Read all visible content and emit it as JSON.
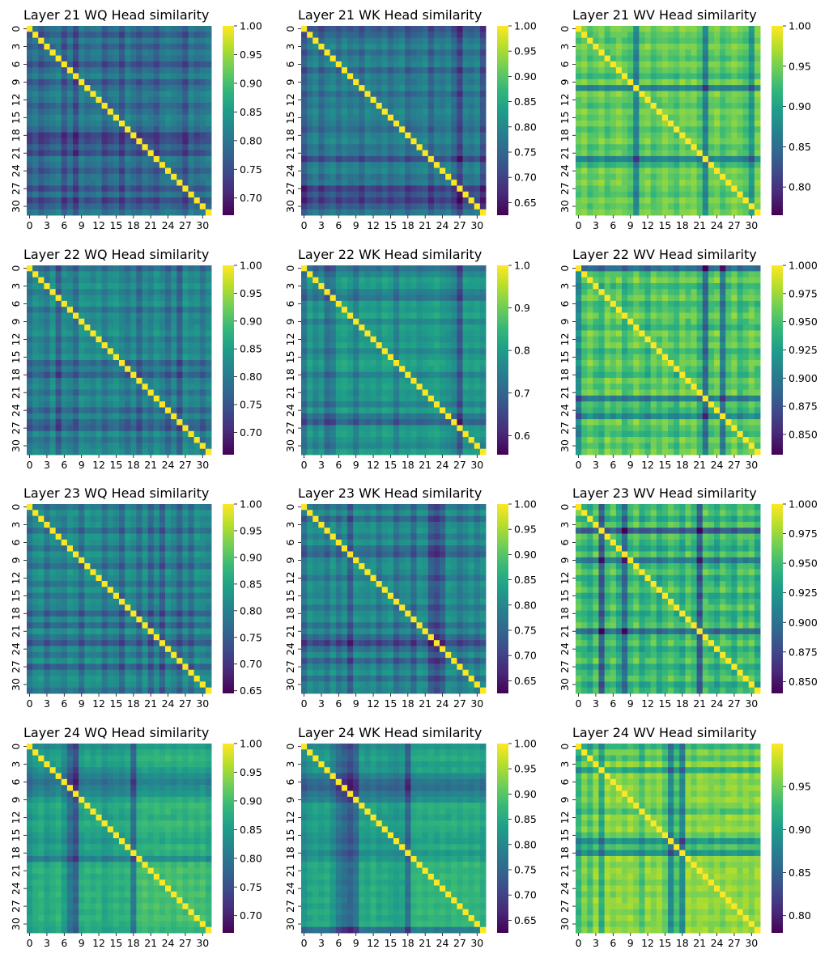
{
  "figure": {
    "n_heads": 32
  },
  "colormap": {
    "name": "viridis",
    "stops": [
      "#440154",
      "#482878",
      "#3e4989",
      "#31688e",
      "#26828e",
      "#1f9e89",
      "#35b779",
      "#6ece58",
      "#b5de2b",
      "#fde725"
    ]
  },
  "chart_data": [
    {
      "type": "heatmap",
      "title": "Layer 21 WQ Head similarity",
      "xticks": [
        "0",
        "3",
        "6",
        "9",
        "12",
        "15",
        "18",
        "21",
        "24",
        "27",
        "30"
      ],
      "yticks": [
        "0",
        "3",
        "6",
        "9",
        "12",
        "15",
        "18",
        "21",
        "24",
        "27",
        "30"
      ],
      "vmin": 0.67,
      "vmax": 1.0,
      "colorbar_ticks": [
        "0.70",
        "0.75",
        "0.80",
        "0.85",
        "0.90",
        "0.95",
        "1.00"
      ],
      "base": 0.79,
      "row_effects": [
        0,
        -0.03,
        0.01,
        -0.02,
        0.01,
        0,
        -0.04,
        0,
        0.02,
        -0.03,
        0,
        0.02,
        0.01,
        -0.02,
        0,
        0.02,
        0.01,
        -0.01,
        -0.06,
        -0.05,
        -0.02,
        -0.05,
        0.01,
        0,
        -0.03,
        0,
        0,
        -0.04,
        0,
        -0.05,
        -0.02,
        0.01
      ],
      "col_effects": [
        -0.01,
        0.01,
        -0.02,
        0,
        0.01,
        0.02,
        -0.03,
        0.01,
        -0.04,
        0.02,
        0,
        0.01,
        0.02,
        -0.02,
        0,
        0.01,
        -0.03,
        0.02,
        0,
        -0.02,
        0.01,
        0,
        -0.02,
        0.01,
        0.02,
        0.01,
        0,
        -0.03,
        0.02,
        0,
        0.01,
        0.02
      ]
    },
    {
      "type": "heatmap",
      "title": "Layer 21 WK Head similarity",
      "xticks": [
        "0",
        "3",
        "6",
        "9",
        "12",
        "15",
        "18",
        "21",
        "24",
        "27",
        "30"
      ],
      "yticks": [
        "0",
        "3",
        "6",
        "9",
        "12",
        "15",
        "18",
        "21",
        "24",
        "27",
        "30"
      ],
      "vmin": 0.625,
      "vmax": 1.0,
      "colorbar_ticks": [
        "0.65",
        "0.70",
        "0.75",
        "0.80",
        "0.85",
        "0.90",
        "0.95",
        "1.00"
      ],
      "base": 0.77,
      "row_effects": [
        -0.05,
        -0.03,
        0,
        0.02,
        -0.02,
        0.01,
        0.02,
        -0.03,
        0.01,
        0,
        0.02,
        -0.02,
        0.01,
        0,
        0.02,
        0.01,
        0,
        -0.02,
        0.01,
        0.02,
        -0.01,
        0,
        -0.06,
        0.01,
        0.02,
        -0.01,
        0,
        -0.08,
        -0.05,
        -0.08,
        -0.04,
        0
      ],
      "col_effects": [
        -0.04,
        0,
        0.02,
        -0.02,
        0.01,
        0.02,
        -0.01,
        0.02,
        0,
        0.01,
        -0.02,
        0.02,
        0.01,
        0,
        0.02,
        -0.01,
        0.01,
        0.02,
        -0.02,
        0,
        0.01,
        0.02,
        -0.03,
        0.01,
        0,
        0.02,
        -0.02,
        -0.07,
        0.01,
        0,
        0.02,
        -0.05
      ]
    },
    {
      "type": "heatmap",
      "title": "Layer 21 WV Head similarity",
      "xticks": [
        "0",
        "3",
        "6",
        "9",
        "12",
        "15",
        "18",
        "21",
        "24",
        "27",
        "30"
      ],
      "yticks": [
        "0",
        "3",
        "6",
        "9",
        "12",
        "15",
        "18",
        "21",
        "24",
        "27",
        "30"
      ],
      "vmin": 0.765,
      "vmax": 1.0,
      "colorbar_ticks": [
        "0.80",
        "0.85",
        "0.90",
        "0.95",
        "1.00"
      ],
      "base": 0.94,
      "row_effects": [
        0.01,
        0,
        -0.01,
        0.01,
        0,
        -0.01,
        0.01,
        0,
        -0.02,
        0.01,
        -0.07,
        0.01,
        0,
        -0.01,
        0.01,
        0,
        0.01,
        -0.01,
        0,
        0.01,
        -0.01,
        0,
        -0.07,
        -0.02,
        0.01,
        0,
        0.01,
        0,
        -0.01,
        0.01,
        0,
        0.01
      ],
      "col_effects": [
        0,
        0.01,
        -0.01,
        0,
        0.01,
        -0.01,
        0,
        0.01,
        0,
        -0.01,
        -0.07,
        0,
        0.01,
        -0.01,
        0,
        0.01,
        0,
        -0.01,
        0.01,
        0,
        0.01,
        -0.01,
        -0.07,
        0,
        0.01,
        -0.01,
        0,
        0.01,
        0,
        -0.01,
        -0.05,
        0.01
      ]
    },
    {
      "type": "heatmap",
      "title": "Layer 22 WQ Head similarity",
      "xticks": [
        "0",
        "3",
        "6",
        "9",
        "12",
        "15",
        "18",
        "21",
        "24",
        "27",
        "30"
      ],
      "yticks": [
        "0",
        "3",
        "6",
        "9",
        "12",
        "15",
        "18",
        "21",
        "24",
        "27",
        "30"
      ],
      "vmin": 0.66,
      "vmax": 1.0,
      "colorbar_ticks": [
        "0.70",
        "0.75",
        "0.80",
        "0.85",
        "0.90",
        "0.95",
        "1.00"
      ],
      "base": 0.81,
      "row_effects": [
        -0.03,
        0.01,
        0,
        0.02,
        -0.01,
        0.01,
        0.02,
        -0.02,
        0.01,
        0,
        0.01,
        0.02,
        -0.01,
        0.01,
        0,
        0.02,
        -0.04,
        -0.01,
        -0.05,
        0,
        0.01,
        -0.02,
        0.01,
        0,
        -0.04,
        0,
        -0.04,
        -0.05,
        0.01,
        -0.02,
        0,
        0.01
      ],
      "col_effects": [
        -0.02,
        0.01,
        0,
        -0.02,
        0.02,
        -0.05,
        0.01,
        0,
        -0.03,
        0.02,
        0.01,
        0,
        0.02,
        -0.01,
        0.01,
        0.02,
        0,
        -0.02,
        0.01,
        -0.04,
        0.01,
        -0.01,
        0.02,
        0,
        -0.03,
        0.01,
        -0.05,
        0.02,
        0,
        0.01,
        -0.02,
        0.01
      ]
    },
    {
      "type": "heatmap",
      "title": "Layer 22 WK Head similarity",
      "xticks": [
        "0",
        "3",
        "6",
        "9",
        "12",
        "15",
        "18",
        "21",
        "24",
        "27",
        "30"
      ],
      "yticks": [
        "0",
        "3",
        "6",
        "9",
        "12",
        "15",
        "18",
        "21",
        "24",
        "27",
        "30"
      ],
      "vmin": 0.555,
      "vmax": 1.0,
      "colorbar_ticks": [
        "0.6",
        "0.7",
        "0.8",
        "0.9",
        "1.0"
      ],
      "base": 0.77,
      "row_effects": [
        -0.06,
        -0.02,
        0.02,
        0.01,
        -0.03,
        -0.05,
        0.02,
        0.01,
        0.03,
        -0.02,
        0.02,
        0.01,
        0,
        0.02,
        -0.02,
        0.01,
        0.03,
        0.02,
        -0.03,
        0.01,
        0.02,
        0,
        0.01,
        -0.03,
        0.02,
        -0.05,
        -0.09,
        0.01,
        0.02,
        0,
        -0.02,
        0.02
      ],
      "col_effects": [
        -0.05,
        0.02,
        -0.02,
        0.01,
        -0.06,
        -0.04,
        0.02,
        0.03,
        0.01,
        -0.03,
        0.02,
        0.01,
        0.02,
        0,
        0.03,
        0.02,
        -0.03,
        0.02,
        0.01,
        0.02,
        0,
        0.01,
        0.02,
        0.03,
        0.01,
        0,
        -0.02,
        -0.1,
        0.02,
        0.01,
        0.02,
        0
      ]
    },
    {
      "type": "heatmap",
      "title": "Layer 22 WV Head similarity",
      "xticks": [
        "0",
        "3",
        "6",
        "9",
        "12",
        "15",
        "18",
        "21",
        "24",
        "27",
        "30"
      ],
      "yticks": [
        "0",
        "3",
        "6",
        "9",
        "12",
        "15",
        "18",
        "21",
        "24",
        "27",
        "30"
      ],
      "vmin": 0.832,
      "vmax": 1.0,
      "colorbar_ticks": [
        "0.850",
        "0.875",
        "0.900",
        "0.925",
        "0.950",
        "0.975",
        "1.000"
      ],
      "base": 0.95,
      "row_effects": [
        -0.06,
        0,
        0.01,
        -0.01,
        0,
        0.01,
        -0.01,
        0,
        0.01,
        0,
        -0.01,
        0.01,
        0,
        0.01,
        -0.01,
        0,
        0.01,
        0,
        -0.01,
        0.01,
        0,
        0.01,
        -0.05,
        0,
        -0.01,
        -0.04,
        0.01,
        0,
        -0.01,
        0.01,
        0,
        0.01
      ],
      "col_effects": [
        -0.04,
        0,
        0.01,
        0,
        -0.01,
        0.01,
        0,
        0.01,
        -0.01,
        0,
        0.01,
        0,
        -0.01,
        0.01,
        0,
        0.01,
        0,
        -0.01,
        0.01,
        0,
        0.01,
        -0.01,
        -0.06,
        0,
        0.01,
        -0.05,
        0,
        0.01,
        -0.01,
        0,
        0.01,
        0
      ]
    },
    {
      "type": "heatmap",
      "title": "Layer 23 WQ Head similarity",
      "xticks": [
        "0",
        "3",
        "6",
        "9",
        "12",
        "15",
        "18",
        "21",
        "24",
        "27",
        "30"
      ],
      "yticks": [
        "0",
        "3",
        "6",
        "9",
        "12",
        "15",
        "18",
        "21",
        "24",
        "27",
        "30"
      ],
      "vmin": 0.645,
      "vmax": 1.0,
      "colorbar_ticks": [
        "0.65",
        "0.70",
        "0.75",
        "0.80",
        "0.85",
        "0.90",
        "0.95",
        "1.00"
      ],
      "base": 0.8,
      "row_effects": [
        -0.02,
        0.02,
        0,
        0.01,
        -0.03,
        0.02,
        0.01,
        -0.02,
        0.02,
        0,
        -0.03,
        0.02,
        0.01,
        -0.02,
        0.02,
        -0.02,
        0.01,
        0,
        -0.05,
        0.01,
        -0.04,
        0.02,
        -0.02,
        -0.06,
        0.01,
        -0.02,
        0.02,
        -0.05,
        0,
        0.02,
        0.01,
        -0.02
      ],
      "col_effects": [
        -0.02,
        0.01,
        0.02,
        -0.02,
        0.01,
        0,
        -0.01,
        0.02,
        0.01,
        -0.03,
        0.02,
        0.01,
        0.02,
        -0.02,
        0.01,
        0,
        -0.04,
        0.02,
        0.01,
        -0.03,
        0.02,
        -0.04,
        0.01,
        -0.05,
        0.02,
        0,
        -0.04,
        0.01,
        -0.03,
        0.02,
        0.01,
        0
      ]
    },
    {
      "type": "heatmap",
      "title": "Layer 23 WK Head similarity",
      "xticks": [
        "0",
        "3",
        "6",
        "9",
        "12",
        "15",
        "18",
        "21",
        "24",
        "27",
        "30"
      ],
      "yticks": [
        "0",
        "3",
        "6",
        "9",
        "12",
        "15",
        "18",
        "21",
        "24",
        "27",
        "30"
      ],
      "vmin": 0.625,
      "vmax": 1.0,
      "colorbar_ticks": [
        "0.65",
        "0.70",
        "0.75",
        "0.80",
        "0.85",
        "0.90",
        "0.95",
        "1.00"
      ],
      "base": 0.79,
      "row_effects": [
        -0.02,
        0.02,
        -0.04,
        0.01,
        0.02,
        -0.01,
        0.02,
        -0.03,
        -0.05,
        0.01,
        0.02,
        0.01,
        -0.02,
        0.02,
        0.01,
        0,
        0.02,
        -0.02,
        0.01,
        0.02,
        -0.03,
        0.01,
        -0.04,
        -0.09,
        -0.03,
        0.01,
        -0.05,
        0,
        0.02,
        -0.03,
        0.01,
        0
      ],
      "col_effects": [
        -0.03,
        0.02,
        0,
        0.01,
        -0.02,
        0.02,
        -0.02,
        0.01,
        -0.06,
        0.02,
        0.01,
        0,
        0.02,
        -0.02,
        0.01,
        0.02,
        -0.03,
        0,
        0.01,
        -0.04,
        0.02,
        0.01,
        -0.06,
        -0.08,
        -0.05,
        0.02,
        0.01,
        -0.02,
        0,
        0.02,
        -0.01,
        0.01
      ]
    },
    {
      "type": "heatmap",
      "title": "Layer 23 WV Head similarity",
      "xticks": [
        "0",
        "3",
        "6",
        "9",
        "12",
        "15",
        "18",
        "21",
        "24",
        "27",
        "30"
      ],
      "yticks": [
        "0",
        "3",
        "6",
        "9",
        "12",
        "15",
        "18",
        "21",
        "24",
        "27",
        "30"
      ],
      "vmin": 0.84,
      "vmax": 1.0,
      "colorbar_ticks": [
        "0.850",
        "0.875",
        "0.900",
        "0.925",
        "0.950",
        "0.975",
        "1.000"
      ],
      "base": 0.945,
      "row_effects": [
        0,
        0.01,
        -0.01,
        0.01,
        -0.06,
        0.01,
        0,
        -0.01,
        0.01,
        -0.04,
        0,
        0.01,
        -0.01,
        0,
        0.01,
        -0.01,
        0,
        0.01,
        -0.01,
        0,
        0.01,
        -0.05,
        0,
        0.01,
        -0.01,
        0,
        0.01,
        -0.01,
        0,
        0.01,
        -0.01,
        0
      ],
      "col_effects": [
        0.01,
        0,
        -0.01,
        0.01,
        -0.06,
        0,
        0.01,
        -0.01,
        -0.05,
        0,
        0.01,
        -0.01,
        0,
        0.01,
        -0.01,
        0,
        0.01,
        0,
        -0.01,
        0.01,
        0,
        -0.06,
        0.01,
        0,
        -0.01,
        0.01,
        0,
        -0.01,
        0.01,
        0,
        0.01,
        -0.01
      ]
    },
    {
      "type": "heatmap",
      "title": "Layer 24 WQ Head similarity",
      "xticks": [
        "0",
        "3",
        "6",
        "9",
        "12",
        "15",
        "18",
        "21",
        "24",
        "27",
        "30"
      ],
      "yticks": [
        "0",
        "3",
        "6",
        "9",
        "12",
        "15",
        "18",
        "21",
        "24",
        "27",
        "30"
      ],
      "vmin": 0.67,
      "vmax": 1.0,
      "colorbar_ticks": [
        "0.70",
        "0.75",
        "0.80",
        "0.85",
        "0.90",
        "0.95",
        "1.00"
      ],
      "base": 0.85,
      "row_effects": [
        -0.02,
        0,
        0.01,
        0,
        -0.02,
        -0.04,
        -0.06,
        -0.04,
        -0.03,
        0,
        0.02,
        0.01,
        0,
        0.02,
        0.01,
        0,
        -0.01,
        0.01,
        0,
        -0.04,
        0.02,
        0.03,
        0.02,
        0.03,
        0.02,
        0.03,
        0.02,
        0.03,
        0.02,
        0.03,
        0.02,
        0.01
      ],
      "col_effects": [
        -0.02,
        0,
        0.01,
        -0.01,
        0,
        0.01,
        -0.02,
        -0.07,
        -0.1,
        0,
        0.01,
        0,
        0.01,
        -0.01,
        0,
        0.01,
        0,
        0.01,
        -0.07,
        0.02,
        0.03,
        0.02,
        0.03,
        0.02,
        0.03,
        0.02,
        0.03,
        0.02,
        0.03,
        0.02,
        0.03,
        0.01
      ]
    },
    {
      "type": "heatmap",
      "title": "Layer 24 WK Head similarity",
      "xticks": [
        "0",
        "3",
        "6",
        "9",
        "12",
        "15",
        "18",
        "21",
        "24",
        "27",
        "30"
      ],
      "yticks": [
        "0",
        "3",
        "6",
        "9",
        "12",
        "15",
        "18",
        "21",
        "24",
        "27",
        "30"
      ],
      "vmin": 0.625,
      "vmax": 1.0,
      "colorbar_ticks": [
        "0.65",
        "0.70",
        "0.75",
        "0.80",
        "0.85",
        "0.90",
        "0.95",
        "1.00"
      ],
      "base": 0.82,
      "row_effects": [
        -0.02,
        0,
        0.01,
        -0.01,
        0,
        -0.04,
        -0.07,
        -0.08,
        -0.05,
        -0.03,
        0.02,
        0.01,
        0,
        0.02,
        0.01,
        0,
        -0.01,
        0.01,
        -0.02,
        0,
        0.03,
        0.02,
        0.03,
        0.02,
        0.03,
        0.02,
        0.03,
        0.02,
        0.03,
        0.02,
        0.03,
        -0.06
      ],
      "col_effects": [
        -0.02,
        0,
        0.01,
        0,
        0.01,
        -0.02,
        -0.06,
        -0.08,
        -0.1,
        -0.07,
        0.01,
        0,
        0.02,
        0,
        0.01,
        0,
        -0.01,
        0,
        -0.08,
        0.02,
        0.03,
        0.02,
        0.03,
        0.02,
        0.03,
        0.02,
        0.03,
        0.02,
        0.03,
        0.02,
        0.03,
        0.01
      ]
    },
    {
      "type": "heatmap",
      "title": "Layer 24 WV Head similarity",
      "xticks": [
        "0",
        "3",
        "6",
        "9",
        "12",
        "15",
        "18",
        "21",
        "24",
        "27",
        "30"
      ],
      "yticks": [
        "0",
        "3",
        "6",
        "9",
        "12",
        "15",
        "18",
        "21",
        "24",
        "27",
        "30"
      ],
      "vmin": 0.78,
      "vmax": 1.0,
      "colorbar_ticks": [
        "0.80",
        "0.85",
        "0.90",
        "0.95"
      ],
      "base": 0.95,
      "row_effects": [
        -0.03,
        0,
        -0.02,
        0.01,
        -0.04,
        0.01,
        0,
        0.01,
        0,
        0.01,
        0,
        -0.02,
        0.01,
        0,
        0.01,
        -0.01,
        -0.06,
        -0.02,
        -0.06,
        0.01,
        0,
        0.01,
        0.01,
        0,
        0.01,
        0,
        0.01,
        0.01,
        0,
        0.01,
        0,
        0.01
      ],
      "col_effects": [
        -0.03,
        0,
        -0.02,
        0.01,
        -0.04,
        0.01,
        0,
        0.01,
        0,
        0.01,
        0,
        -0.02,
        0.01,
        0,
        0.01,
        -0.01,
        -0.07,
        -0.02,
        -0.07,
        0.01,
        0,
        0.01,
        0.01,
        0,
        0.01,
        0,
        0.01,
        0.01,
        0,
        0.01,
        0,
        0.01
      ]
    }
  ]
}
